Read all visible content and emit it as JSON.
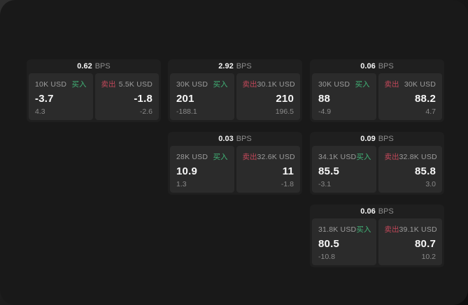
{
  "colors": {
    "buy_green": "#41b377",
    "sell_red": "#c2485a",
    "surface_bg": "#191919",
    "card_bg": "#1f1f1f",
    "panel_bg": "#2b2b2b"
  },
  "shared": {
    "bps_unit": "BPS",
    "buy_label": "买入",
    "sell_label": "卖出"
  },
  "cards": [
    {
      "bps": "0.62",
      "buy": {
        "size": "10K USD",
        "price": "-3.7",
        "delta": "4.3"
      },
      "sell": {
        "size": "5.5K USD",
        "price": "-1.8",
        "delta": "-2.6"
      }
    },
    {
      "bps": "2.92",
      "buy": {
        "size": "30K USD",
        "price": "201",
        "delta": "-188.1"
      },
      "sell": {
        "size": "30.1K USD",
        "price": "210",
        "delta": "196.5"
      }
    },
    {
      "bps": "0.06",
      "buy": {
        "size": "30K USD",
        "price": "88",
        "delta": "-4.9"
      },
      "sell": {
        "size": "30K USD",
        "price": "88.2",
        "delta": "4.7"
      }
    },
    {
      "bps": "0.03",
      "buy": {
        "size": "28K USD",
        "price": "10.9",
        "delta": "1.3"
      },
      "sell": {
        "size": "32.6K USD",
        "price": "11",
        "delta": "-1.8"
      }
    },
    {
      "bps": "0.09",
      "buy": {
        "size": "34.1K USD",
        "price": "85.5",
        "delta": "-3.1"
      },
      "sell": {
        "size": "32.8K USD",
        "price": "85.8",
        "delta": "3.0"
      }
    },
    {
      "bps": "0.06",
      "buy": {
        "size": "31.8K USD",
        "price": "80.5",
        "delta": "-10.8"
      },
      "sell": {
        "size": "39.1K USD",
        "price": "80.7",
        "delta": "10.2"
      }
    }
  ]
}
